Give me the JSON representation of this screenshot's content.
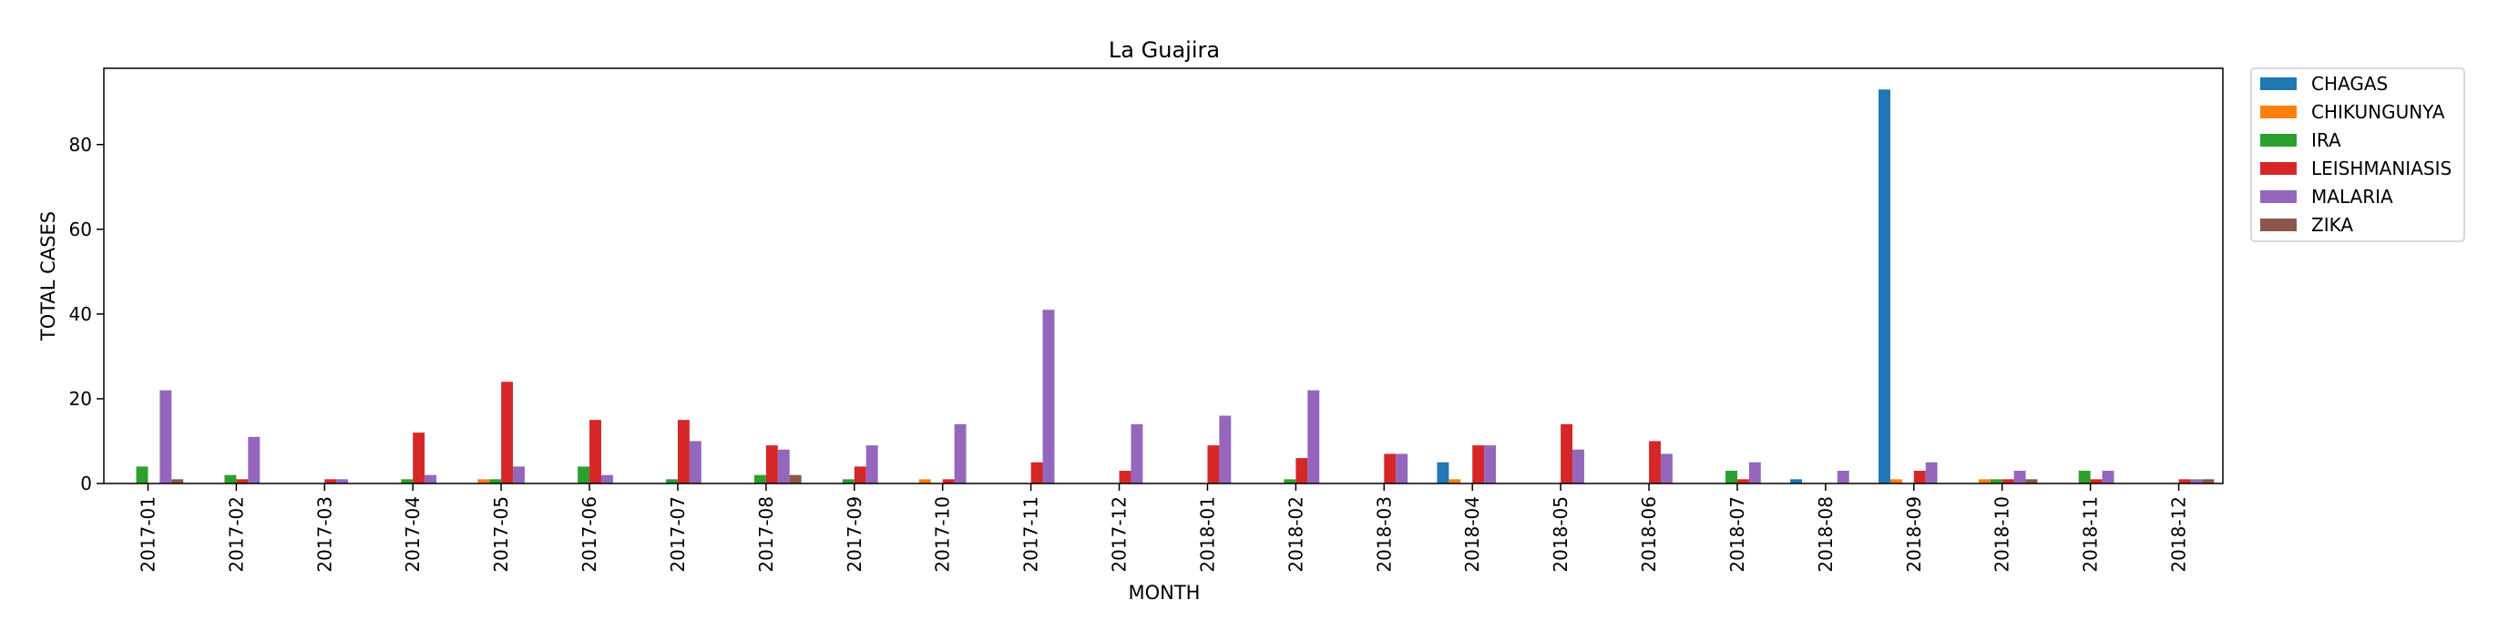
{
  "chart_data": {
    "type": "bar",
    "title": "La Guajira",
    "xlabel": "MONTH",
    "ylabel": "TOTAL CASES",
    "ylim": [
      0,
      98
    ],
    "yticks": [
      0,
      20,
      40,
      60,
      80
    ],
    "grid": false,
    "legend_position": "outside-top-right",
    "categories": [
      "2017-01",
      "2017-02",
      "2017-03",
      "2017-04",
      "2017-05",
      "2017-06",
      "2017-07",
      "2017-08",
      "2017-09",
      "2017-10",
      "2017-11",
      "2017-12",
      "2018-01",
      "2018-02",
      "2018-03",
      "2018-04",
      "2018-05",
      "2018-06",
      "2018-07",
      "2018-08",
      "2018-09",
      "2018-10",
      "2018-11",
      "2018-12"
    ],
    "series": [
      {
        "name": "CHAGAS",
        "color": "#1f77b4",
        "values": [
          0,
          0,
          0,
          0,
          0,
          0,
          0,
          0,
          0,
          0,
          0,
          0,
          0,
          0,
          0,
          5,
          0,
          0,
          0,
          1,
          93,
          0,
          0,
          0
        ]
      },
      {
        "name": "CHIKUNGUNYA",
        "color": "#ff7f0e",
        "values": [
          0,
          0,
          0,
          0,
          1,
          0,
          0,
          0,
          0,
          1,
          0,
          0,
          0,
          0,
          0,
          1,
          0,
          0,
          0,
          0,
          1,
          1,
          0,
          0
        ]
      },
      {
        "name": "IRA",
        "color": "#2ca02c",
        "values": [
          4,
          2,
          0,
          1,
          1,
          4,
          1,
          2,
          1,
          0,
          0,
          0,
          0,
          1,
          0,
          0,
          0,
          0,
          3,
          0,
          0,
          1,
          3,
          0
        ]
      },
      {
        "name": "LEISHMANIASIS",
        "color": "#d62728",
        "values": [
          0,
          1,
          1,
          12,
          24,
          15,
          15,
          9,
          4,
          1,
          5,
          3,
          9,
          6,
          7,
          9,
          14,
          10,
          1,
          0,
          3,
          1,
          1,
          1
        ]
      },
      {
        "name": "MALARIA",
        "color": "#9467bd",
        "values": [
          22,
          11,
          1,
          2,
          4,
          2,
          10,
          8,
          9,
          14,
          41,
          14,
          16,
          22,
          7,
          9,
          8,
          7,
          5,
          3,
          5,
          3,
          3,
          1
        ]
      },
      {
        "name": "ZIKA",
        "color": "#8c564b",
        "values": [
          1,
          0,
          0,
          0,
          0,
          0,
          0,
          2,
          0,
          0,
          0,
          0,
          0,
          0,
          0,
          0,
          0,
          0,
          0,
          0,
          0,
          1,
          0,
          1
        ]
      }
    ]
  }
}
